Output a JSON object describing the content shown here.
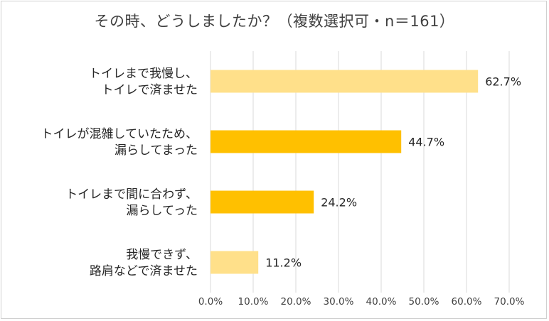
{
  "chart_data": {
    "type": "bar",
    "orientation": "horizontal",
    "title": "その時、どうしましたか？（複数選択可・n＝161）",
    "categories": [
      [
        "トイレまで我慢し、",
        "トイレで済ませた"
      ],
      [
        "トイレが混雑していたため、",
        "漏らしてまった"
      ],
      [
        "トイレまで間に合わず、",
        "漏らしてった"
      ],
      [
        "我慢できず、",
        "路肩などで済ませた"
      ]
    ],
    "values": [
      62.7,
      44.7,
      24.2,
      11.2
    ],
    "value_labels": [
      "62.7%",
      "44.7%",
      "24.2%",
      "11.2%"
    ],
    "bar_colors": [
      "#ffe08a",
      "#ffc000",
      "#ffc000",
      "#ffe08a"
    ],
    "xlim": [
      0,
      70
    ],
    "xticks": [
      "0.0%",
      "10.0%",
      "20.0%",
      "30.0%",
      "40.0%",
      "50.0%",
      "60.0%",
      "70.0%"
    ],
    "grid": true,
    "legend": "none"
  }
}
